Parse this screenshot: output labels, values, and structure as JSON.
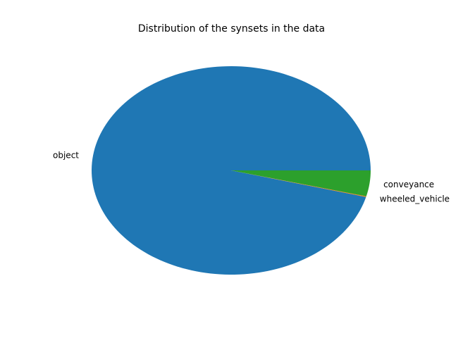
{
  "chart_data": {
    "type": "pie",
    "title": "Distribution of the synsets in the data",
    "slices": [
      {
        "label": "object",
        "value": 95.9,
        "color": "#1f77b4"
      },
      {
        "label": "wheeled_vehicle",
        "value": 0.1,
        "color": "#ff7f0e"
      },
      {
        "label": "conveyance",
        "value": 4.0,
        "color": "#2ca02c"
      }
    ],
    "start_angle": 0,
    "direction": "counterclockwise",
    "legend": "none"
  }
}
